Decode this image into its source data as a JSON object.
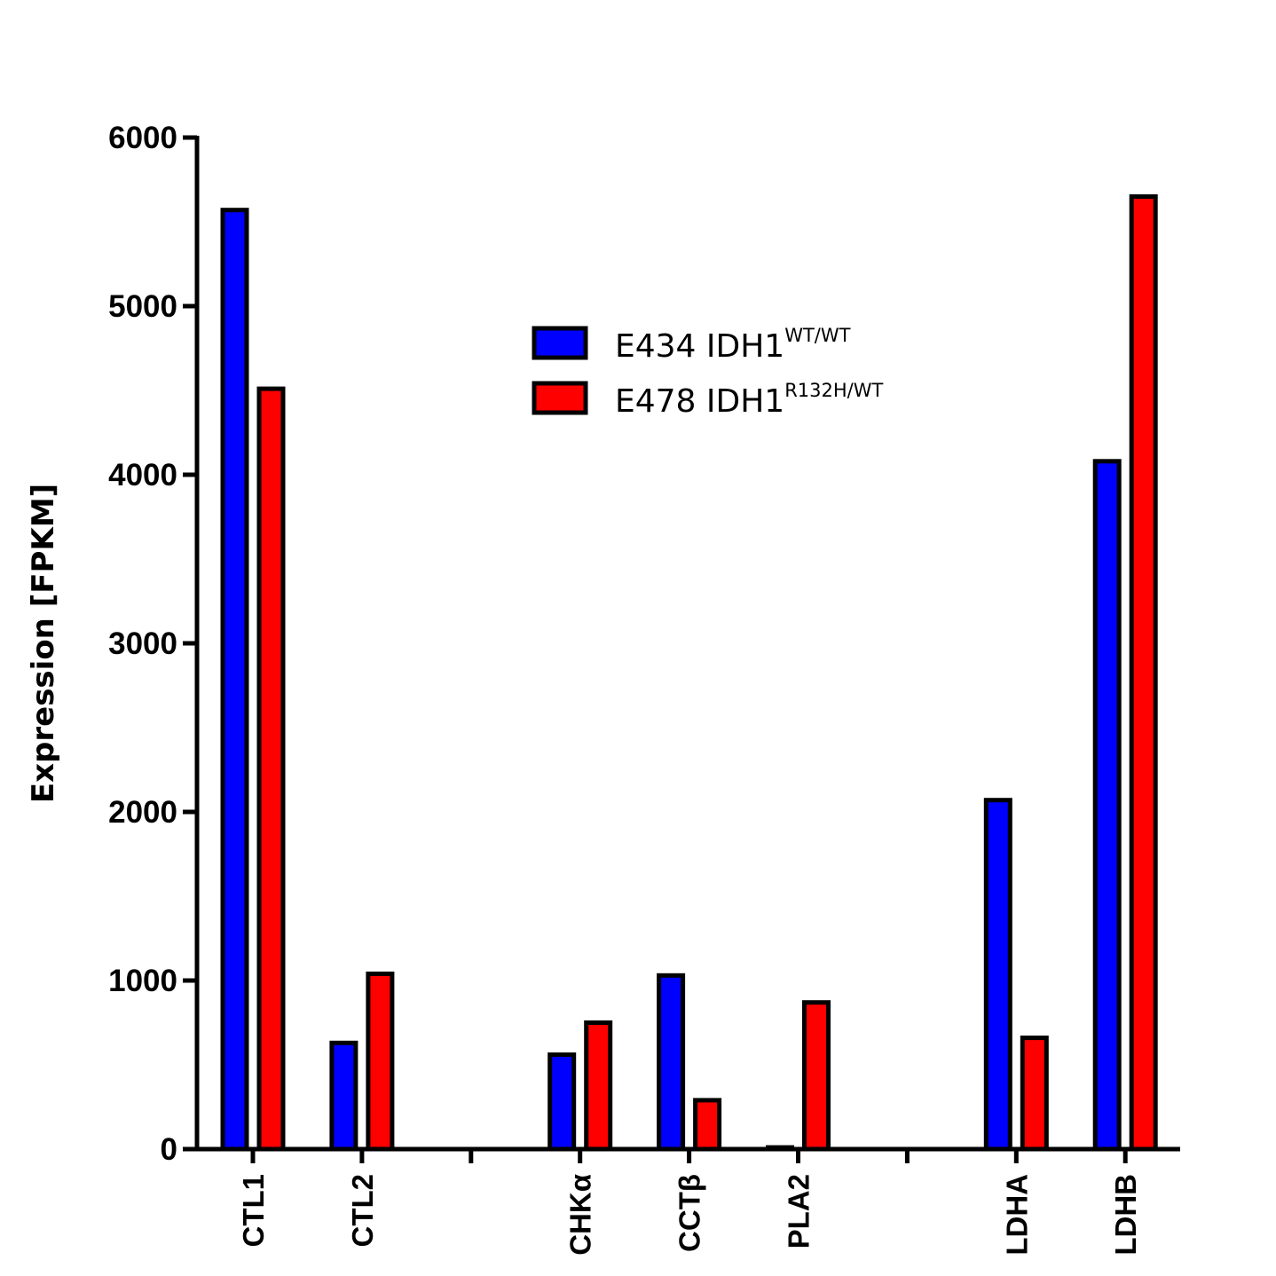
{
  "chart_data": {
    "type": "bar",
    "title": "",
    "xlabel": "",
    "ylabel": "Expression [FPKM]",
    "ylim": [
      0,
      6000
    ],
    "yticks": [
      0,
      1000,
      2000,
      3000,
      4000,
      5000,
      6000
    ],
    "categories": [
      "CTL1",
      "CTL2",
      "",
      "CHKα",
      "CCTβ",
      "PLA2",
      "",
      "LDHA",
      "LDHB"
    ],
    "series": [
      {
        "name": "E434 IDH1",
        "superscript": "WT/WT",
        "color": "#0000ff",
        "values": [
          5570,
          630,
          null,
          560,
          1030,
          10,
          null,
          2070,
          4080
        ]
      },
      {
        "name": "E478 IDH1",
        "superscript": "R132H/WT",
        "color": "#ff0000",
        "values": [
          4510,
          1040,
          null,
          750,
          290,
          870,
          null,
          660,
          5650
        ]
      }
    ],
    "legend_position": "top-center",
    "grid": false
  }
}
